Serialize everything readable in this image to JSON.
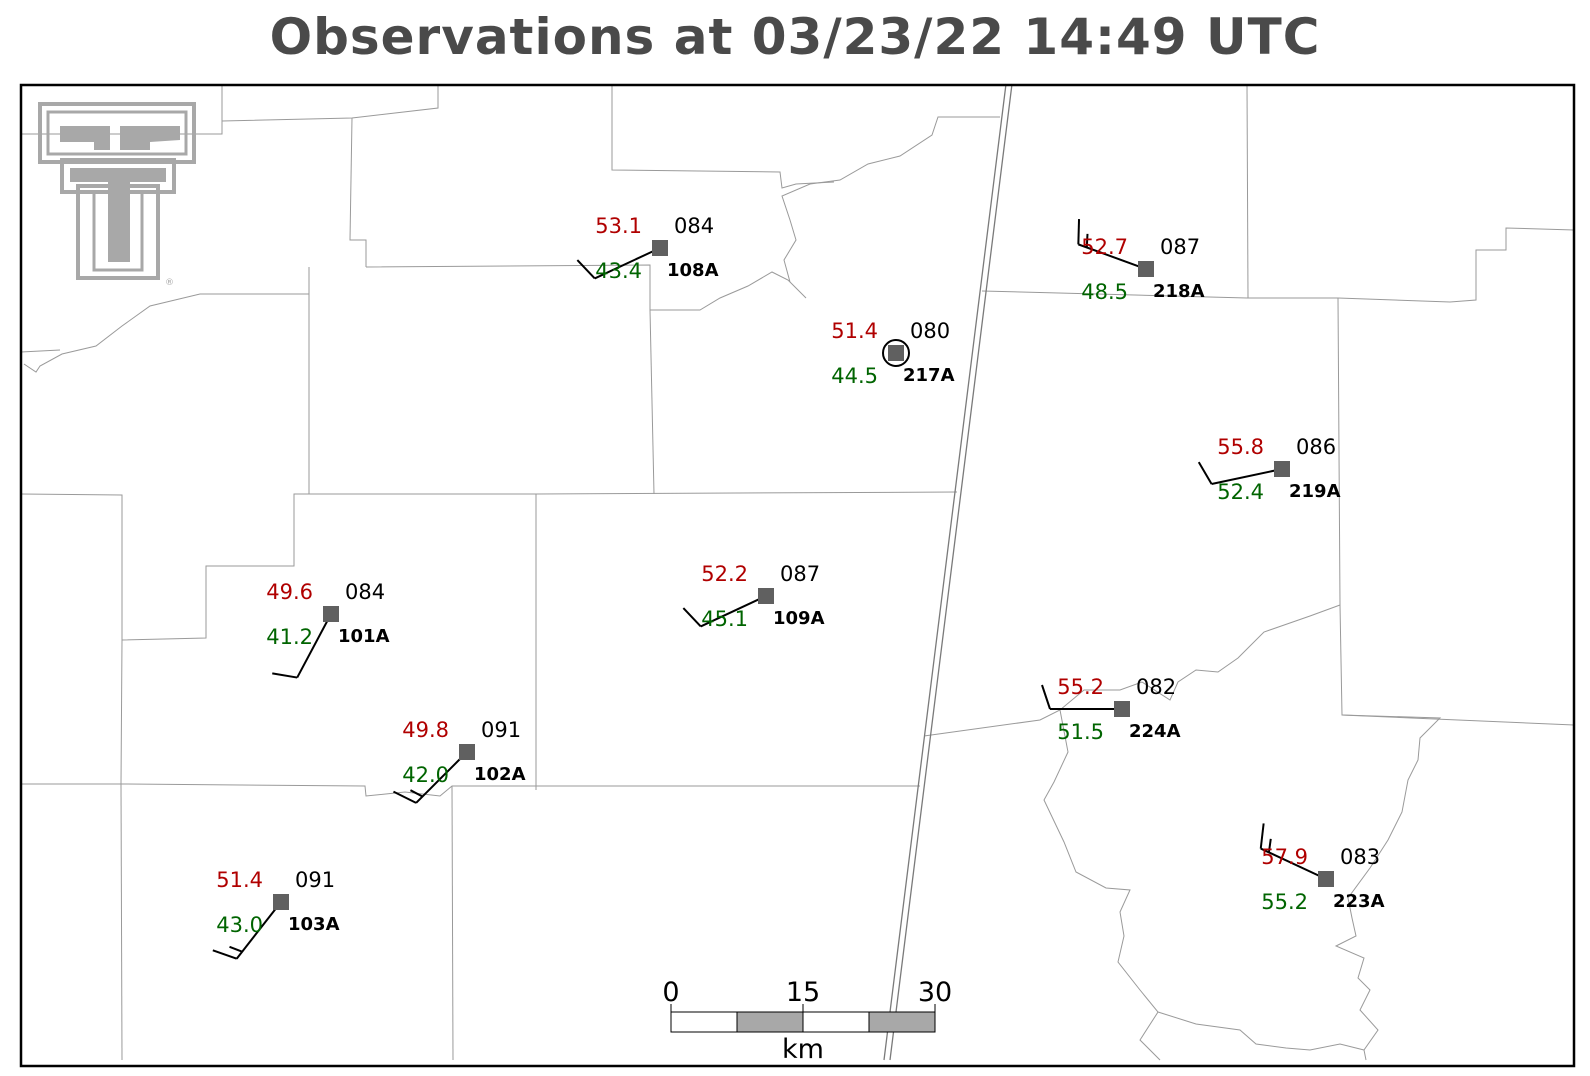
{
  "title": "Observations at 03/23/22 14:49 UTC",
  "colors": {
    "temperature": "#b00000",
    "dewpoint": "#006400",
    "station_marker": "#606060",
    "county_lines": "#9a9a9a",
    "title": "#4a4a4a",
    "logo": "#a8a8a8"
  },
  "logo": {
    "icon": "texas-tech-double-t-logo",
    "mark": "®"
  },
  "legend": {
    "scale_labels": [
      "0",
      "15",
      "30"
    ],
    "unit": "km"
  },
  "stations": [
    {
      "id": "108A",
      "temp": "53.1",
      "dew": "43.4",
      "rh": "084",
      "wind": {
        "dir": 245,
        "kt": 10
      }
    },
    {
      "id": "217A",
      "temp": "51.4",
      "dew": "44.5",
      "rh": "080",
      "wind": {
        "dir": 0,
        "kt": 0
      }
    },
    {
      "id": "218A",
      "temp": "52.7",
      "dew": "48.5",
      "rh": "087",
      "wind": {
        "dir": 290,
        "kt": 15
      }
    },
    {
      "id": "219A",
      "temp": "55.8",
      "dew": "52.4",
      "rh": "086",
      "wind": {
        "dir": 258,
        "kt": 10
      }
    },
    {
      "id": "101A",
      "temp": "49.6",
      "dew": "41.2",
      "rh": "084",
      "wind": {
        "dir": 208,
        "kt": 10
      }
    },
    {
      "id": "109A",
      "temp": "52.2",
      "dew": "45.1",
      "rh": "087",
      "wind": {
        "dir": 245,
        "kt": 10
      }
    },
    {
      "id": "102A",
      "temp": "49.8",
      "dew": "42.0",
      "rh": "091",
      "wind": {
        "dir": 225,
        "kt": 15
      }
    },
    {
      "id": "224A",
      "temp": "55.2",
      "dew": "51.5",
      "rh": "082",
      "wind": {
        "dir": 270,
        "kt": 10
      }
    },
    {
      "id": "103A",
      "temp": "51.4",
      "dew": "43.0",
      "rh": "091",
      "wind": {
        "dir": 218,
        "kt": 15
      }
    },
    {
      "id": "223A",
      "temp": "57.9",
      "dew": "55.2",
      "rh": "083",
      "wind": {
        "dir": 295,
        "kt": 15
      }
    }
  ]
}
